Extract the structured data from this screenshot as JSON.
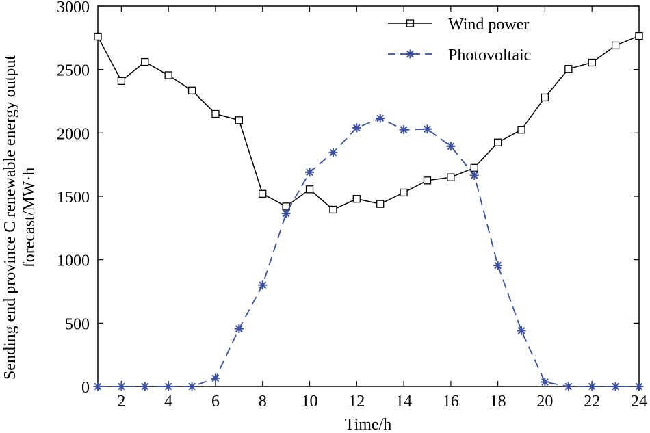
{
  "chart_data": {
    "type": "line",
    "title": "",
    "xlabel": "Time/h",
    "ylabel_lines": [
      "Sending end province C renewable energy output",
      "forecast/MW·h"
    ],
    "xlim": [
      1,
      24
    ],
    "ylim": [
      0,
      3000
    ],
    "xticks": [
      2,
      4,
      6,
      8,
      10,
      12,
      14,
      16,
      18,
      20,
      22,
      24
    ],
    "yticks": [
      0,
      500,
      1000,
      1500,
      2000,
      2500,
      3000
    ],
    "x": [
      1,
      2,
      3,
      4,
      5,
      6,
      7,
      8,
      9,
      10,
      11,
      12,
      13,
      14,
      15,
      16,
      17,
      18,
      19,
      20,
      21,
      22,
      23,
      24
    ],
    "legend_position": "top-right",
    "series": [
      {
        "name": "Wind power",
        "color": "#000000",
        "line_style": "solid",
        "marker": "square",
        "values": [
          2760,
          2410,
          2560,
          2455,
          2335,
          2150,
          2100,
          1520,
          1420,
          1555,
          1395,
          1480,
          1440,
          1530,
          1625,
          1650,
          1725,
          1925,
          2025,
          2280,
          2505,
          2555,
          2690,
          2765
        ]
      },
      {
        "name": "Photovoltaic",
        "color": "#3a4fa0",
        "line_style": "dashed",
        "marker": "asterisk",
        "values": [
          0,
          0,
          0,
          0,
          0,
          65,
          455,
          800,
          1365,
          1690,
          1845,
          2040,
          2115,
          2025,
          2030,
          1895,
          1665,
          955,
          440,
          35,
          0,
          0,
          0,
          0
        ]
      }
    ]
  }
}
